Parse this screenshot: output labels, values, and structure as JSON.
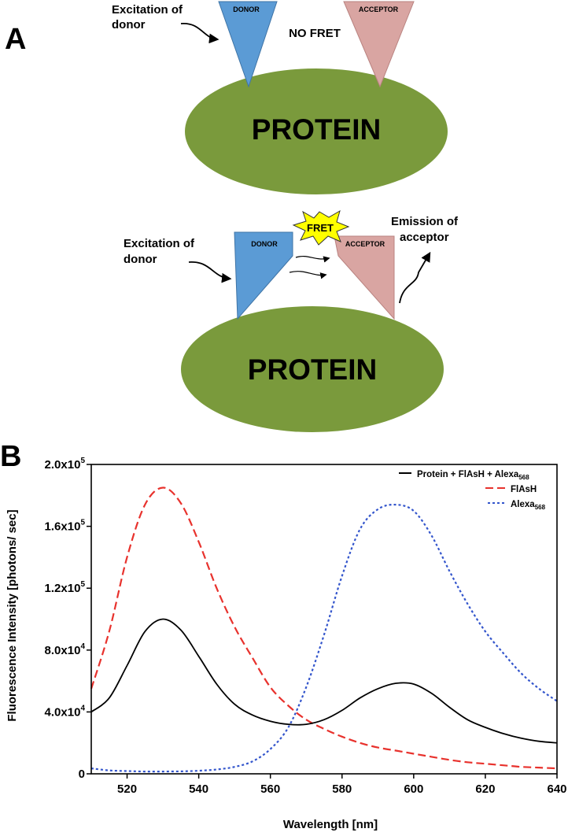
{
  "panel_a": {
    "label": "A",
    "top": {
      "excitation_label_line1": "Excitation of",
      "excitation_label_line2": "donor",
      "donor_label": "DONOR",
      "acceptor_label": "ACCEPTOR",
      "state_label": "NO FRET",
      "protein_label": "PROTEIN"
    },
    "bottom": {
      "excitation_label_line1": "Excitation of",
      "excitation_label_line2": "donor",
      "donor_label": "DONOR",
      "acceptor_label": "ACCEPTOR",
      "fret_burst_label": "FRET",
      "emission_label_line1": "Emission of",
      "emission_label_line2": "acceptor",
      "protein_label": "PROTEIN"
    },
    "colors": {
      "protein": "#7a9a3c",
      "donor": "#5b9bd5",
      "acceptor": "#d9a5a2",
      "burst": "#ffff00"
    }
  },
  "panel_b": {
    "label": "B",
    "chart_data": {
      "type": "line",
      "xlabel": "Wavelength [nm]",
      "ylabel": "Fluorescence Intensity [photons/ sec]",
      "xlim": [
        510,
        640
      ],
      "ylim": [
        0,
        200000
      ],
      "x_ticks": [
        520,
        540,
        560,
        580,
        600,
        620,
        640
      ],
      "y_ticks": [
        0,
        40000,
        80000,
        120000,
        160000,
        200000
      ],
      "y_tick_labels": [
        "0",
        "4.0x10",
        "8.0x10",
        "1.2x10",
        "1.6x10",
        "2.0x10"
      ],
      "y_tick_exponents": [
        "",
        "4",
        "4",
        "5",
        "5",
        "5"
      ],
      "legend_position": "top-right",
      "x": [
        510,
        515,
        520,
        525,
        530,
        535,
        540,
        545,
        550,
        555,
        560,
        565,
        570,
        575,
        580,
        585,
        590,
        595,
        600,
        605,
        610,
        615,
        620,
        625,
        630,
        635,
        640
      ],
      "series": [
        {
          "name": "Protein + FlAsH + Alexa",
          "name_subscript": "568",
          "color": "#000000",
          "style": "solid",
          "values": [
            40000,
            49000,
            70000,
            92000,
            100000,
            93000,
            76000,
            58000,
            45000,
            38000,
            34000,
            32000,
            32000,
            35000,
            41000,
            49000,
            55000,
            58500,
            58000,
            52000,
            43000,
            35000,
            30000,
            26000,
            23000,
            21000,
            20000
          ]
        },
        {
          "name": "FlAsH",
          "name_subscript": "",
          "color": "#e8322d",
          "style": "dashed",
          "values": [
            55000,
            92000,
            140000,
            174000,
            185000,
            175000,
            150000,
            120000,
            95000,
            75000,
            56000,
            44000,
            35000,
            29000,
            24000,
            20000,
            17000,
            15000,
            13000,
            11000,
            9000,
            7500,
            6500,
            5500,
            4500,
            4000,
            3500
          ]
        },
        {
          "name": "Alexa",
          "name_subscript": "568",
          "color": "#3355cc",
          "style": "dotted",
          "values": [
            3500,
            2200,
            1800,
            1500,
            1500,
            1600,
            2000,
            2800,
            4500,
            8000,
            16000,
            30000,
            56000,
            90000,
            128000,
            158000,
            171000,
            174000,
            170000,
            154000,
            131000,
            110000,
            92000,
            78000,
            65000,
            55000,
            47000
          ]
        }
      ]
    }
  }
}
